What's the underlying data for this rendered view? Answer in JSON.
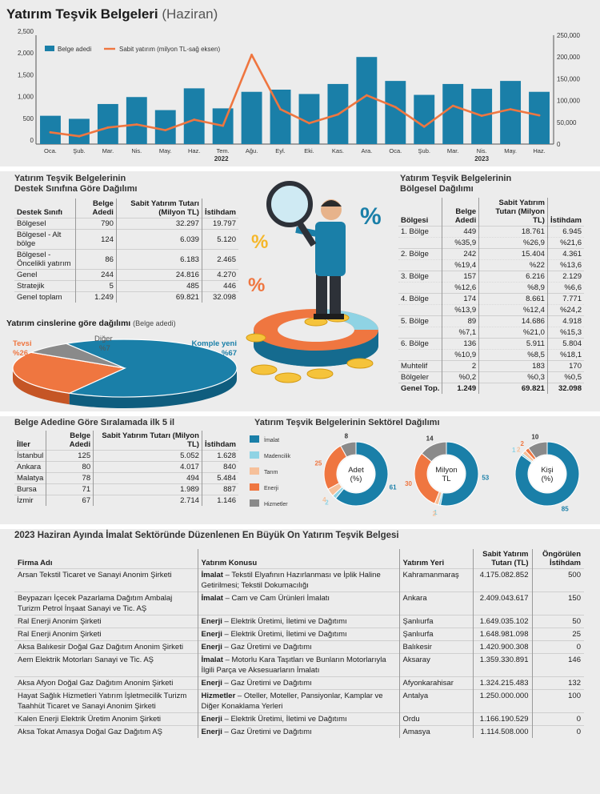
{
  "header": {
    "title": "Yatırım Teşvik Belgeleri",
    "subtitle": "(Haziran)"
  },
  "colors": {
    "bar": "#1a7fa8",
    "line": "#ef7640",
    "teal": "#1a7fa8",
    "orange": "#ef7640",
    "lightblue": "#8fd3e4",
    "peach": "#f6c09a",
    "gray": "#8a8a8a"
  },
  "chart_data": [
    {
      "type": "bar",
      "categories": [
        "Oca.",
        "Şub.",
        "Mar.",
        "Nis.",
        "May.",
        "Haz.",
        "Tem.",
        "Ağu.",
        "Eyl.",
        "Eki.",
        "Kas.",
        "Ara.",
        "Oca.",
        "Şub.",
        "Mar.",
        "Nis.",
        "May.",
        "Haz."
      ],
      "year_labels": [
        "2022",
        "2023"
      ],
      "series": [
        {
          "name": "Belge adedi",
          "type": "bar",
          "axis": "left",
          "values": [
            650,
            580,
            920,
            1080,
            780,
            1280,
            820,
            1200,
            1250,
            1150,
            1380,
            2000,
            1450,
            1130,
            1380,
            1270,
            1450,
            1200
          ]
        },
        {
          "name": "Sabit yatırım (milyon TL-sağ eksen)",
          "type": "line",
          "axis": "right",
          "values": [
            27000,
            18000,
            38000,
            45000,
            32000,
            56000,
            42000,
            205000,
            80000,
            48000,
            68000,
            112000,
            85000,
            40000,
            88000,
            65000,
            80000,
            66000
          ]
        }
      ],
      "ylim_left": [
        0,
        2500
      ],
      "yticks_left": [
        "0",
        "500",
        "1,000",
        "1,500",
        "2,000",
        "2,500"
      ],
      "ylim_right": [
        0,
        250000
      ],
      "yticks_right": [
        "0",
        "50,000",
        "100,000",
        "150,000",
        "200,000",
        "250,000"
      ]
    },
    {
      "type": "pie",
      "title": "Yatırım cinslerine göre dağılımı",
      "note": "(Belge adedi)",
      "labels": [
        "Komple yeni",
        "Tevsi",
        "Diğer"
      ],
      "label_values": [
        "%67",
        "%26",
        "%7"
      ],
      "values": [
        67,
        26,
        7
      ]
    },
    {
      "type": "pie",
      "title": "Yatırım Teşvik Belgelerinin Sektörel Dağılımı",
      "legend": [
        "İmalat",
        "Madencilik",
        "Tarım",
        "Enerji",
        "Hizmetler"
      ],
      "donuts": [
        {
          "center": [
            "Adet",
            "(%)"
          ],
          "values": [
            61,
            2,
            4,
            25,
            8
          ]
        },
        {
          "center": [
            "Milyon",
            "TL"
          ],
          "values": [
            53,
            1,
            2,
            30,
            14
          ]
        },
        {
          "center": [
            "Kişi",
            "(%)"
          ],
          "values": [
            85,
            1,
            2,
            2,
            10
          ]
        }
      ]
    }
  ],
  "bar_legend": [
    "Belge adedi",
    "Sabit yatırım (milyon TL-sağ eksen)"
  ],
  "destek": {
    "title1": "Yatırım Teşvik Belgelerinin",
    "title2": "Destek Sınıfına Göre Dağılımı",
    "headers": [
      "Destek Sınıfı",
      "Belge Adedi",
      "Sabit Yatırım Tutarı (Milyon TL)",
      "İstihdam"
    ],
    "rows": [
      [
        "Bölgesel",
        "790",
        "32.297",
        "19.797"
      ],
      [
        "Bölgesel - Alt bölge",
        "124",
        "6.039",
        "5.120"
      ],
      [
        "Bölgesel - Öncelikli yatırım",
        "86",
        "6.183",
        "2.465"
      ],
      [
        "Genel",
        "244",
        "24.816",
        "4.270"
      ],
      [
        "Stratejik",
        "5",
        "485",
        "446"
      ],
      [
        "Genel toplam",
        "1.249",
        "69.821",
        "32.098"
      ]
    ]
  },
  "bolgesel": {
    "title1": "Yatırım Teşvik Belgelerinin",
    "title2": "Bölgesel Dağılımı",
    "headers": [
      "Bölgesi",
      "Belge Adedi",
      "Sabit Yatırım Tutarı (Milyon TL)",
      "İstihdam"
    ],
    "rows": [
      [
        "1. Bölge",
        "449",
        "18.761",
        "6.945"
      ],
      [
        "",
        "%35,9",
        "%26,9",
        "%21,6"
      ],
      [
        "2. Bölge",
        "242",
        "15.404",
        "4.361"
      ],
      [
        "",
        "%19,4",
        "%22",
        "%13,6"
      ],
      [
        "3. Bölge",
        "157",
        "6.216",
        "2.129"
      ],
      [
        "",
        "%12,6",
        "%8,9",
        "%6,6"
      ],
      [
        "4. Bölge",
        "174",
        "8.661",
        "7.771"
      ],
      [
        "",
        "%13,9",
        "%12,4",
        "%24,2"
      ],
      [
        "5. Bölge",
        "89",
        "14.686",
        "4.918"
      ],
      [
        "",
        "%7,1",
        "%21,0",
        "%15,3"
      ],
      [
        "6. Bölge",
        "136",
        "5.911",
        "5.804"
      ],
      [
        "",
        "%10,9",
        "%8,5",
        "%18,1"
      ],
      [
        "Muhtelif",
        "2",
        "183",
        "170"
      ],
      [
        "Bölgeler",
        "%0,2",
        "%0,3",
        "%0,5"
      ],
      [
        "Genel Top.",
        "1.249",
        "69.821",
        "32.098"
      ]
    ]
  },
  "ilk5": {
    "title": "Belge Adedine Göre Sıralamada ilk 5 il",
    "headers": [
      "İller",
      "Belge Adedi",
      "Sabit Yatırım Tutarı (Milyon TL)",
      "İstihdam"
    ],
    "rows": [
      [
        "İstanbul",
        "125",
        "5.052",
        "1.628"
      ],
      [
        "Ankara",
        "80",
        "4.017",
        "840"
      ],
      [
        "Malatya",
        "78",
        "494",
        "5.484"
      ],
      [
        "Bursa",
        "71",
        "1.989",
        "887"
      ],
      [
        "İzmir",
        "67",
        "2.714",
        "1.146"
      ]
    ]
  },
  "enbuyuk": {
    "title": "2023 Haziran Ayında İmalat Sektöründe Düzenlenen En Büyük On Yatırım Teşvik Belgesi",
    "headers": [
      "Firma Adı",
      "Yatırım Konusu",
      "Yatırım Yeri",
      "Sabit Yatırım Tutarı (TL)",
      "Öngörülen İstihdam"
    ],
    "rows": [
      {
        "firma": "Arsan Tekstil Ticaret ve Sanayi Anonim Şirketi",
        "sektor": "İmalat",
        "konu": " – Tekstil Elyafının Hazırlanması ve İplik Haline Getirilmesi; Tekstil Dokumacılığı",
        "yer": "Kahramanmaraş",
        "tutar": "4.175.082.852",
        "ist": "500"
      },
      {
        "firma": "Beypazarı İçecek Pazarlama Dağıtım Ambalaj Turizm Petrol İnşaat Sanayi ve Tic. AŞ",
        "sektor": "İmalat",
        "konu": " – Cam ve Cam Ürünleri İmalatı",
        "yer": "Ankara",
        "tutar": "2.409.043.617",
        "ist": "150"
      },
      {
        "firma": "Ral Enerji Anonim Şirketi",
        "sektor": "Enerji",
        "konu": " – Elektrik Üretimi, İletimi ve Dağıtımı",
        "yer": "Şanlıurfa",
        "tutar": "1.649.035.102",
        "ist": "50"
      },
      {
        "firma": "Ral Enerji Anonim Şirketi",
        "sektor": "Enerji",
        "konu": " – Elektrik Üretimi, İletimi ve Dağıtımı",
        "yer": "Şanlıurfa",
        "tutar": "1.648.981.098",
        "ist": "25"
      },
      {
        "firma": "Aksa Balıkesir Doğal Gaz Dağıtım Anonim Şirketi",
        "sektor": "Enerji",
        "konu": " – Gaz Üretimi ve Dağıtımı",
        "yer": "Balıkesir",
        "tutar": "1.420.900.308",
        "ist": "0"
      },
      {
        "firma": "Aem Elektrik Motorları Sanayi ve Tic. AŞ",
        "sektor": "İmalat",
        "konu": " – Motorlu Kara Taşıtları ve Bunların Motorlarıyla İlgili Parça ve Aksesuarların İmalatı",
        "yer": "Aksaray",
        "tutar": "1.359.330.891",
        "ist": "146"
      },
      {
        "firma": "Aksa Afyon Doğal Gaz Dağıtım Anonim Şirketi",
        "sektor": "Enerji",
        "konu": " – Gaz Üretimi ve Dağıtımı",
        "yer": "Afyonkarahisar",
        "tutar": "1.324.215.483",
        "ist": "132"
      },
      {
        "firma": "Hayat Sağlık Hizmetleri Yatırım İşletmecilik Turizm Taahhüt Ticaret ve Sanayi Anonim Şirketi",
        "sektor": "Hizmetler",
        "konu": " – Oteller, Moteller, Pansiyonlar, Kamplar ve Diğer Konaklama Yerleri",
        "yer": "Antalya",
        "tutar": "1.250.000.000",
        "ist": "100"
      },
      {
        "firma": "Kalen Enerji Elektrik Üretim Anonim Şirketi",
        "sektor": "Enerji",
        "konu": " – Elektrik Üretimi, İletimi ve Dağıtımı",
        "yer": "Ordu",
        "tutar": "1.166.190.529",
        "ist": "0"
      },
      {
        "firma": "Aksa Tokat Amasya Doğal Gaz Dağıtım AŞ",
        "sektor": "Enerji",
        "konu": " – Gaz Üretimi ve Dağıtımı",
        "yer": "Amasya",
        "tutar": "1.114.508.000",
        "ist": "0"
      }
    ]
  },
  "illustration": {
    "percent_sign": "%"
  }
}
